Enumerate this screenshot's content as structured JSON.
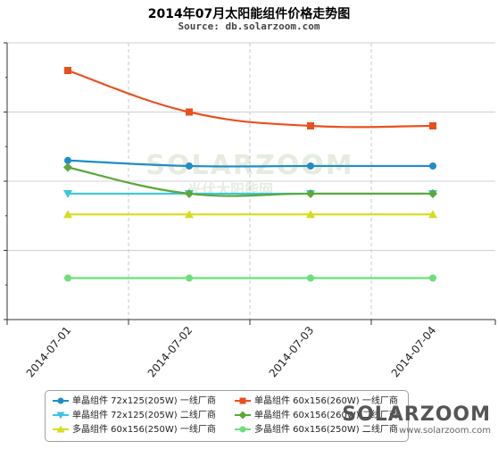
{
  "header": {
    "title": "2014年07月太阳能组件价格走势图",
    "subtitle": "Source: db.solarzoom.com"
  },
  "watermark": {
    "logo": "SOLARZOOM",
    "tagline": "光伏太阳能网"
  },
  "footer": {
    "logo": "SOLARZOOM",
    "url": "www.solarzoom.com"
  },
  "chart_data": {
    "type": "line",
    "categories": [
      "2014-07-01",
      "2014-07-02",
      "2014-07-03",
      "2014-07-04"
    ],
    "ylim": [
      0,
      4
    ],
    "y_ticks": [
      0,
      1,
      2,
      3,
      4
    ],
    "y_tick_labels_shown": false,
    "grid": "vertical dashed + horizontal",
    "legend_position": "bottom",
    "series": [
      {
        "name": "单晶组件 72x125(205W) 一线厂商",
        "color": "#1f8dc9",
        "marker": "circle",
        "values": [
          2.3,
          2.22,
          2.22,
          2.22
        ]
      },
      {
        "name": "单晶组件 60x156(260W) 一线厂商",
        "color": "#e8501e",
        "marker": "square",
        "values": [
          3.6,
          3.0,
          2.8,
          2.8
        ]
      },
      {
        "name": "单晶组件 72x125(205W) 二线厂商",
        "color": "#3dc6e0",
        "marker": "triangle-down",
        "values": [
          1.82,
          1.82,
          1.82,
          1.82
        ]
      },
      {
        "name": "单晶组件 60x156(260W) 二线厂商",
        "color": "#5aa83a",
        "marker": "diamond",
        "values": [
          2.2,
          1.82,
          1.82,
          1.82
        ]
      },
      {
        "name": "多晶组件 60x156(250W) 一线厂商",
        "color": "#d6dd1c",
        "marker": "triangle-up",
        "values": [
          1.52,
          1.52,
          1.52,
          1.52
        ]
      },
      {
        "name": "多晶组件 60x156(250W) 二线厂商",
        "color": "#6be07a",
        "marker": "circle",
        "values": [
          0.6,
          0.6,
          0.6,
          0.6
        ]
      }
    ]
  }
}
